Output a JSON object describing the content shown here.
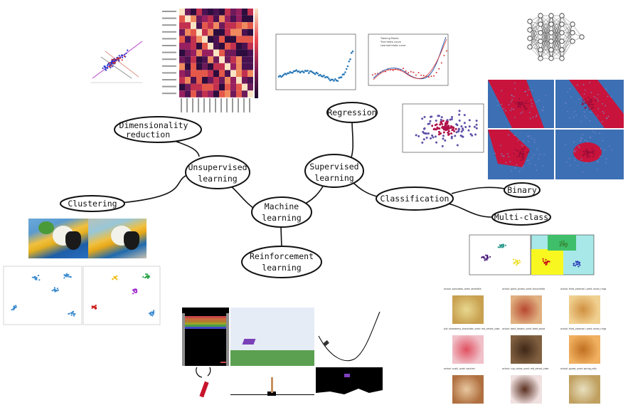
{
  "nodes": {
    "center": [
      "Machine",
      "learning"
    ],
    "supervised": [
      "Supervised",
      "learning"
    ],
    "unsupervised": [
      "Unsupervised",
      "learning"
    ],
    "reinforcement": [
      "Reinforcement",
      "learning"
    ],
    "regression": [
      "Regression"
    ],
    "classification": [
      "Classification"
    ],
    "binary": [
      "Binary"
    ],
    "multiclass": [
      "Multi-class"
    ],
    "dimensionality": [
      "Dimensionality",
      "reduction"
    ],
    "clustering": [
      "Clustering"
    ]
  },
  "images": {
    "heatmap": "correlation heatmap",
    "pca": "PCA scatter with principal axes",
    "regression_scatter": "polynomial regression data",
    "regression_fit": "regression curve fit",
    "fit_legend": [
      "Training Points",
      "True theta curve",
      "Learned theta curve"
    ],
    "neural_net": "neural network diagram",
    "classification_scatter": "two-class scatter",
    "decision_boundaries": "decision boundary panels",
    "multiclass_plot": "multi-class regions",
    "parrot": "parrot color quantization",
    "clusters": "cluster scatter plots",
    "games": "reinforcement learning environments",
    "food": "food image classification grid"
  },
  "food_captions": [
    "actual: pancakes, pred: omelette",
    "actual: garlic_bread, pred: bruschetta",
    "actual: fried_calamari, pred: onion_rings",
    "pid: strawberry_shortcake, pred: red_velvet_cake",
    "actual: beef_tartare, pred: beet_salad",
    "actual: fried_calamari, pred: onion_rings",
    "actual: sushi, pred: sashimi",
    "actual: cup_cakes, pred: red_velvet_cake",
    "actual: gyoza, pred: spring_rolls"
  ],
  "colors": {
    "red": "#c8143c",
    "blue": "#3d6fb4",
    "purple": "#6b2f8f",
    "heat_dark": "#2c0d3e",
    "heat_light": "#f6b58a"
  }
}
